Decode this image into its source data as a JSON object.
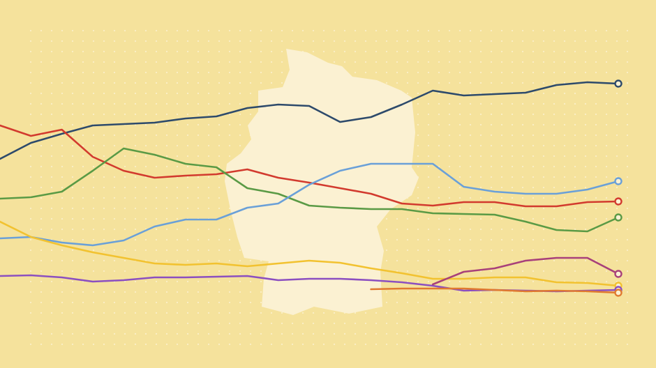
{
  "chart_data": {
    "type": "line",
    "x": [
      0,
      2,
      4,
      6,
      8,
      10,
      12,
      14,
      16,
      18,
      20,
      22,
      24,
      26,
      28,
      30,
      32,
      34,
      36,
      38,
      40
    ],
    "xlim": [
      0,
      40
    ],
    "ylim": [
      0,
      50
    ],
    "series": [
      {
        "color": "#2d4a6b",
        "values": [
          27.2,
          29.5,
          30.8,
          32,
          32.2,
          32.4,
          33,
          33.3,
          34.5,
          35,
          34.8,
          32.5,
          33.2,
          35,
          37,
          36.3,
          36.5,
          36.7,
          37.8,
          38.2,
          38
        ]
      },
      {
        "color": "#d23a2e",
        "values": [
          32,
          30.5,
          31.4,
          27.5,
          25.5,
          24.5,
          24.8,
          25,
          25.7,
          24.5,
          23.8,
          23,
          22.2,
          20.8,
          20.5,
          21,
          21,
          20.4,
          20.4,
          21,
          21.1
        ]
      },
      {
        "color": "#5a9a45",
        "values": [
          21.5,
          21.7,
          22.5,
          25.5,
          28.7,
          27.8,
          26.5,
          26,
          23,
          22.2,
          20.5,
          20.2,
          20,
          20,
          19.4,
          19.3,
          19.2,
          18.2,
          17,
          16.8,
          18.8
        ]
      },
      {
        "color": "#6aa0d8",
        "values": [
          15.8,
          16,
          15.2,
          14.8,
          15.5,
          17.5,
          18.5,
          18.5,
          20.2,
          20.8,
          23.5,
          25.5,
          26.5,
          26.5,
          26.5,
          23.2,
          22.5,
          22.2,
          22.2,
          22.8,
          24
        ]
      },
      {
        "color": "#f2c230",
        "values": [
          18.2,
          16,
          14.8,
          13.8,
          13,
          12.2,
          12,
          12.2,
          11.8,
          12.2,
          12.6,
          12.3,
          11.5,
          10.8,
          10,
          10,
          10.2,
          10.2,
          9.5,
          9.4,
          9
        ]
      },
      {
        "color": "#8b4fc0",
        "values": [
          10.4,
          10.5,
          10.2,
          9.6,
          9.8,
          10.2,
          10.2,
          10.3,
          10.4,
          9.8,
          10,
          10,
          9.8,
          9.5,
          9,
          8.3,
          8.4,
          8.3,
          8.2,
          8.3,
          8.4
        ]
      },
      {
        "color": "#a8407a",
        "values": [
          null,
          null,
          null,
          null,
          null,
          null,
          null,
          null,
          null,
          null,
          null,
          null,
          null,
          null,
          9.2,
          11,
          11.5,
          12.6,
          13,
          13,
          10.7
        ]
      },
      {
        "color": "#e07a30",
        "values": [
          null,
          null,
          null,
          null,
          null,
          null,
          null,
          null,
          null,
          null,
          null,
          null,
          8.5,
          8.6,
          8.6,
          8.6,
          8.4,
          8.2,
          8.3,
          8.2,
          8.0
        ]
      }
    ]
  }
}
